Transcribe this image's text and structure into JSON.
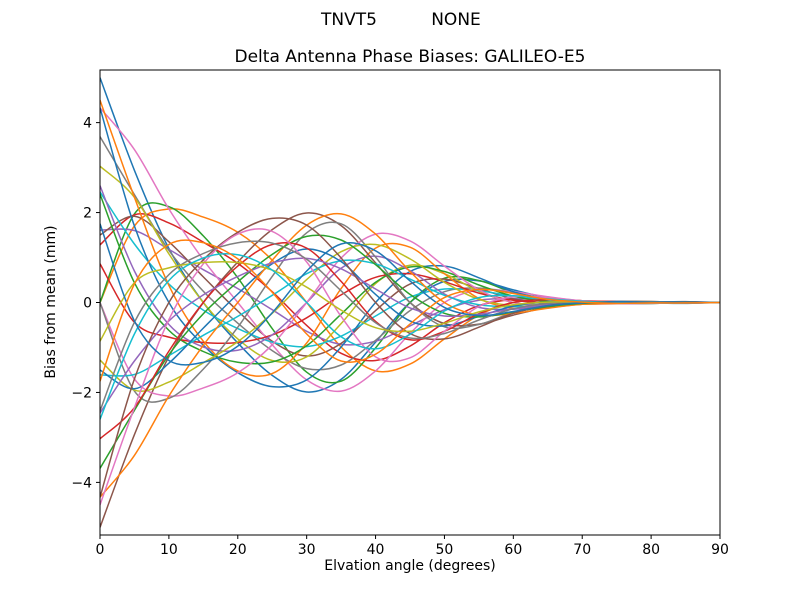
{
  "figure": {
    "suptitle_left": "TNVT5",
    "suptitle_right": "NONE"
  },
  "chart_data": {
    "type": "line",
    "title": "Delta Antenna Phase Biases: GALILEO-E5",
    "xlabel": "Elvation angle (degrees)",
    "ylabel": "Bias from mean (mm)",
    "xlim": [
      0,
      90
    ],
    "ylim": [
      -5.17,
      5.17
    ],
    "xticks": [
      0,
      10,
      20,
      30,
      40,
      50,
      60,
      70,
      80,
      90
    ],
    "yticks": [
      -4,
      -2,
      0,
      2,
      4
    ],
    "grid": false,
    "legend": "none",
    "line_width": 1.5,
    "colors": [
      "#1f77b4",
      "#ff7f0e",
      "#2ca02c",
      "#d62728",
      "#9467bd",
      "#8c564b",
      "#e377c2",
      "#7f7f7f",
      "#bcbd22",
      "#17becf"
    ],
    "x": [
      0,
      5,
      10,
      15,
      20,
      25,
      30,
      35,
      40,
      45,
      50,
      55,
      60,
      65,
      70,
      75,
      80,
      85,
      90
    ],
    "series": [
      {
        "values": [
          5,
          2.94,
          1.2,
          0,
          -0.9,
          -1.62,
          -1.99,
          -1.71,
          -0.88,
          0,
          0.47,
          0.48,
          0.28,
          0.11,
          0.03,
          0,
          -0.01,
          -0.02,
          0
        ]
      },
      {
        "values": [
          0,
          1.7,
          2.08,
          1.9,
          1.56,
          0.94,
          0,
          -0.99,
          -1.52,
          -1.37,
          -0.81,
          -0.28,
          0,
          0.07,
          0.04,
          0.03,
          0.02,
          0.01,
          0
        ]
      },
      {
        "values": [
          0,
          1.97,
          2.13,
          1.48,
          0.55,
          -0.58,
          -1.55,
          -1.75,
          -1.01,
          0,
          0.54,
          0.49,
          0.22,
          0.04,
          -0.02,
          -0.03,
          -0.02,
          -0.01,
          0
        ]
      },
      {
        "values": [
          1.28,
          1.95,
          1.77,
          1.34,
          0.87,
          0.24,
          -0.51,
          -1.13,
          -1.29,
          -0.97,
          -0.45,
          -0.07,
          0.07,
          0.07,
          0.04,
          0.02,
          0.01,
          0,
          0
        ]
      },
      {
        "values": [
          1.61,
          1.6,
          1.18,
          0.73,
          0.31,
          -0.16,
          -0.64,
          -0.93,
          -0.86,
          -0.52,
          -0.16,
          0.05,
          0.09,
          0.06,
          0.02,
          0.01,
          0,
          0,
          0
        ]
      },
      {
        "values": [
          1.5,
          1.92,
          1.35,
          0.57,
          -0.19,
          -0.86,
          -1.19,
          -0.91,
          -0.18,
          0.41,
          0.52,
          0.31,
          0.08,
          -0.01,
          -0.02,
          -0.02,
          -0.01,
          0,
          0
        ]
      },
      {
        "values": [
          4.33,
          3.4,
          2.08,
          0.95,
          0,
          -0.94,
          -1.72,
          -1.97,
          -1.52,
          -0.69,
          0,
          0.28,
          0.24,
          0.13,
          0.04,
          0.02,
          0,
          -0.01,
          0
        ]
      },
      {
        "values": [
          3.69,
          2.4,
          1.16,
          0.25,
          -0.46,
          -1.07,
          -1.47,
          -1.39,
          -0.84,
          -0.18,
          0.24,
          0.32,
          0.21,
          0.09,
          0.02,
          0,
          -0.01,
          -0.01,
          0
        ]
      },
      {
        "values": [
          3.03,
          2.34,
          1.08,
          0,
          -0.81,
          -1.29,
          -1.21,
          -0.47,
          0.42,
          0.83,
          0.64,
          0.25,
          0,
          -0.06,
          -0.03,
          -0.02,
          -0.01,
          0,
          0
        ]
      },
      {
        "values": [
          2.46,
          1.3,
          0.41,
          -0.17,
          -0.58,
          -0.88,
          -0.98,
          -0.75,
          -0.3,
          0.12,
          0.3,
          0.26,
          0.14,
          0.05,
          0.01,
          0,
          -0.01,
          0,
          0
        ]
      },
      {
        "values": [
          4.33,
          1.7,
          0,
          -0.95,
          -1.56,
          -1.87,
          -1.72,
          -0.99,
          0,
          0.69,
          0.81,
          0.55,
          0.24,
          0.07,
          0,
          -0.02,
          -0.02,
          -0.01,
          0
        ]
      },
      {
        "values": [
          4.5,
          2.34,
          0.38,
          -0.86,
          -1.52,
          -1.58,
          -0.9,
          0.31,
          1.21,
          1.23,
          0.64,
          0.09,
          -0.13,
          -0.11,
          -0.04,
          -0.02,
          0,
          0.01,
          0
        ]
      },
      {
        "values": [
          2.41,
          0.44,
          -0.62,
          -1.09,
          -1.33,
          -1.32,
          -0.96,
          -0.26,
          0.45,
          0.79,
          0.69,
          0.39,
          0.14,
          0.02,
          -0.01,
          -0.02,
          -0.02,
          -0.01,
          0
        ]
      },
      {
        "values": [
          0.86,
          -0.44,
          -0.77,
          -0.89,
          -0.89,
          -0.72,
          -0.34,
          0.17,
          0.56,
          0.64,
          0.46,
          0.21,
          0.05,
          -0.01,
          -0.02,
          -0.01,
          -0.01,
          0,
          0
        ]
      },
      {
        "values": [
          2.6,
          0.7,
          -0.49,
          -0.99,
          -1.06,
          -0.72,
          0,
          0.76,
          1.03,
          0.71,
          0.19,
          -0.11,
          -0.15,
          -0.08,
          -0.03,
          0,
          0.01,
          0.01,
          0
        ]
      },
      {
        "values": [
          -5,
          -2.94,
          -1.2,
          0,
          0.9,
          1.62,
          1.99,
          1.71,
          0.88,
          0,
          -0.47,
          -0.48,
          -0.28,
          -0.11,
          -0.03,
          0,
          0.01,
          0.02,
          0
        ]
      },
      {
        "values": [
          0,
          -1.7,
          -2.08,
          -1.9,
          -1.56,
          -0.94,
          0,
          0.99,
          1.52,
          1.37,
          0.81,
          0.28,
          0,
          -0.07,
          -0.04,
          -0.03,
          -0.02,
          -0.01,
          0
        ]
      },
      {
        "values": [
          0,
          -1.97,
          -2.13,
          -1.48,
          -0.55,
          0.58,
          1.55,
          1.75,
          1.01,
          0,
          -0.54,
          -0.49,
          -0.22,
          -0.04,
          0.02,
          0.03,
          0.02,
          0.01,
          0
        ]
      },
      {
        "values": [
          -1.28,
          -1.95,
          -1.77,
          -1.34,
          -0.87,
          -0.24,
          0.51,
          1.13,
          1.29,
          0.97,
          0.45,
          0.07,
          -0.07,
          -0.07,
          -0.04,
          -0.02,
          -0.01,
          0,
          0
        ]
      },
      {
        "values": [
          -1.61,
          -1.6,
          -1.18,
          -0.73,
          -0.31,
          0.16,
          0.64,
          0.93,
          0.86,
          0.52,
          0.16,
          -0.05,
          -0.09,
          -0.06,
          -0.02,
          -0.01,
          0,
          0,
          0
        ]
      },
      {
        "values": [
          -1.5,
          -1.92,
          -1.35,
          -0.57,
          0.19,
          0.86,
          1.19,
          0.91,
          0.18,
          -0.41,
          -0.52,
          -0.31,
          -0.08,
          0.01,
          0.02,
          0.02,
          0.01,
          0,
          0
        ]
      },
      {
        "values": [
          -4.33,
          -3.4,
          -2.08,
          -0.95,
          0,
          0.94,
          1.72,
          1.97,
          1.52,
          0.69,
          0,
          -0.28,
          -0.24,
          -0.13,
          -0.04,
          -0.02,
          0,
          0.01,
          0
        ]
      },
      {
        "values": [
          -3.69,
          -2.4,
          -1.16,
          -0.25,
          0.46,
          1.07,
          1.47,
          1.39,
          0.84,
          0.18,
          -0.24,
          -0.32,
          -0.21,
          -0.09,
          -0.02,
          0,
          0.01,
          0.01,
          0
        ]
      },
      {
        "values": [
          -3.03,
          -2.34,
          -1.08,
          0,
          0.81,
          1.29,
          1.21,
          0.47,
          -0.42,
          -0.83,
          -0.64,
          -0.25,
          0,
          0.06,
          0.03,
          0.02,
          0.01,
          0,
          0
        ]
      },
      {
        "values": [
          -2.46,
          -1.3,
          -0.41,
          0.17,
          0.58,
          0.88,
          0.98,
          0.75,
          0.3,
          -0.12,
          -0.3,
          -0.26,
          -0.14,
          -0.05,
          -0.01,
          0,
          0.01,
          0,
          0
        ]
      },
      {
        "values": [
          -4.33,
          -1.7,
          0,
          0.95,
          1.56,
          1.87,
          1.72,
          0.99,
          0,
          -0.69,
          -0.81,
          -0.55,
          -0.24,
          -0.07,
          0,
          0.02,
          0.02,
          0.01,
          0
        ]
      },
      {
        "values": [
          -4.5,
          -2.34,
          -0.38,
          0.86,
          1.52,
          1.58,
          0.9,
          -0.31,
          -1.21,
          -1.23,
          -0.64,
          -0.09,
          0.13,
          0.11,
          0.04,
          0.02,
          0,
          -0.01,
          0
        ]
      },
      {
        "values": [
          -2.41,
          -0.44,
          0.62,
          1.09,
          1.33,
          1.32,
          0.96,
          0.26,
          -0.45,
          -0.79,
          -0.69,
          -0.39,
          -0.14,
          -0.02,
          0.01,
          0.02,
          0.02,
          0.01,
          0
        ]
      },
      {
        "values": [
          -0.86,
          0.44,
          0.77,
          0.89,
          0.89,
          0.72,
          0.34,
          -0.17,
          -0.56,
          -0.64,
          -0.46,
          -0.21,
          -0.05,
          0.01,
          0.02,
          0.01,
          0.01,
          0,
          0
        ]
      },
      {
        "values": [
          -2.6,
          -0.7,
          0.49,
          0.99,
          1.06,
          0.72,
          0,
          -0.76,
          -1.03,
          -0.71,
          -0.19,
          0.11,
          0.15,
          0.08,
          0.03,
          0,
          -0.01,
          -0.01,
          0
        ]
      },
      {
        "values": [
          1.75,
          -0.41,
          -1.29,
          -1.33,
          -0.97,
          -0.23,
          0.7,
          1.3,
          1.15,
          0.48,
          -0.11,
          -0.29,
          -0.2,
          -0.07,
          -0.01,
          0.02,
          0.01,
          0.01,
          0
        ]
      },
      {
        "values": [
          -1.75,
          0.41,
          1.29,
          1.33,
          0.97,
          0.23,
          -0.7,
          -1.3,
          -1.15,
          -0.48,
          0.11,
          0.29,
          0.2,
          0.07,
          0.01,
          -0.02,
          -0.01,
          -0.01,
          0
        ]
      }
    ]
  }
}
